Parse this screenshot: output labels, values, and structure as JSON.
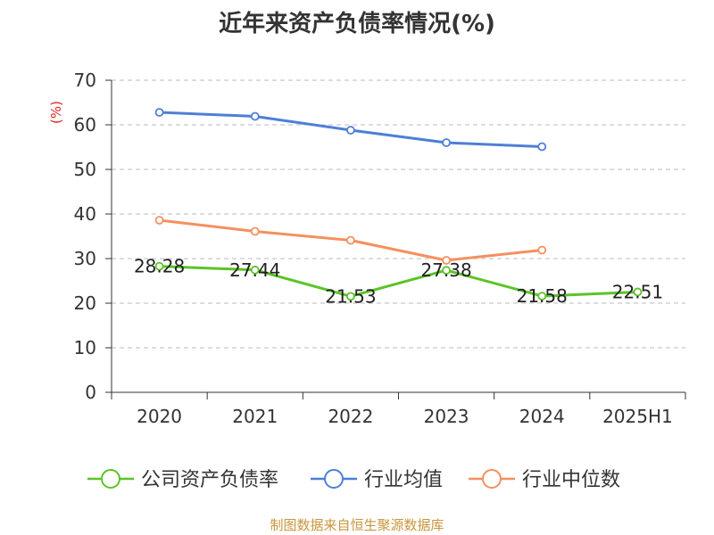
{
  "title": "近年来资产负债率情况(%)",
  "source": "制图数据来自恒生聚源数据库",
  "colors": {
    "company": "#5bc427",
    "industry_avg": "#4e7fd6",
    "industry_median": "#f5905e",
    "ylabel": "#e02020",
    "grid": "#bbbbbb",
    "axis": "#333333",
    "source": "#c8963c"
  },
  "chart_data": {
    "type": "line",
    "title": "近年来资产负债率情况(%)",
    "ylabel": "(%)",
    "xlabel": "",
    "ylim": [
      0,
      70
    ],
    "yticks": [
      0,
      10,
      20,
      30,
      40,
      50,
      60,
      70
    ],
    "grid": true,
    "legend_position": "bottom",
    "categories": [
      "2020",
      "2021",
      "2022",
      "2023",
      "2024",
      "2025H1"
    ],
    "series": [
      {
        "name": "公司资产负债率",
        "color": "#5bc427",
        "values": [
          28.28,
          27.44,
          21.53,
          27.38,
          21.58,
          22.51
        ],
        "labels": [
          "28.28",
          "27.44",
          "21.53",
          "27.38",
          "21.58",
          "22.51"
        ]
      },
      {
        "name": "行业均值",
        "color": "#4e7fd6",
        "values": [
          62.8,
          61.9,
          58.8,
          56.0,
          55.1,
          null
        ]
      },
      {
        "name": "行业中位数",
        "color": "#f5905e",
        "values": [
          38.6,
          36.1,
          34.1,
          29.6,
          31.9,
          null
        ]
      }
    ]
  }
}
